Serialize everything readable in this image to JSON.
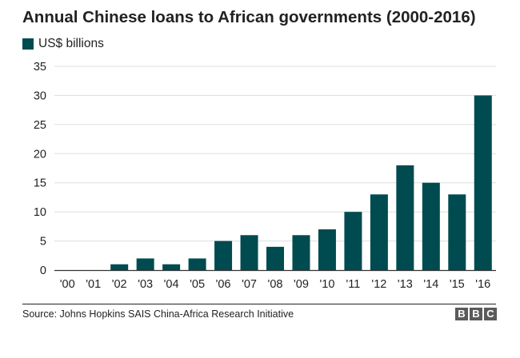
{
  "brand": "BBC",
  "source": "Source: Johns Hopkins SAIS China-Africa Research Initiative",
  "colors": {
    "bar": "#004b4f",
    "grid": "#dddddd",
    "axis": "#333333",
    "text": "#222222",
    "logo": "#5b5b5b"
  },
  "chart_data": {
    "type": "bar",
    "title": "Annual Chinese loans to African governments (2000-2016)",
    "xlabel": "",
    "ylabel": "",
    "categories": [
      "'00",
      "'01",
      "'02",
      "'03",
      "'04",
      "'05",
      "'06",
      "'07",
      "'08",
      "'09",
      "'10",
      "'11",
      "'12",
      "'13",
      "'14",
      "'15",
      "'16"
    ],
    "series": [
      {
        "name": "US$ billions",
        "values": [
          0,
          0,
          1,
          2,
          1,
          2,
          5,
          6,
          4,
          6,
          7,
          10,
          13,
          18,
          15,
          13,
          30
        ]
      }
    ],
    "ylim": [
      0,
      35
    ],
    "yticks": [
      "0",
      "5",
      "10",
      "15",
      "20",
      "25",
      "30",
      "35"
    ],
    "grid": true,
    "legend_position": "top-left"
  }
}
